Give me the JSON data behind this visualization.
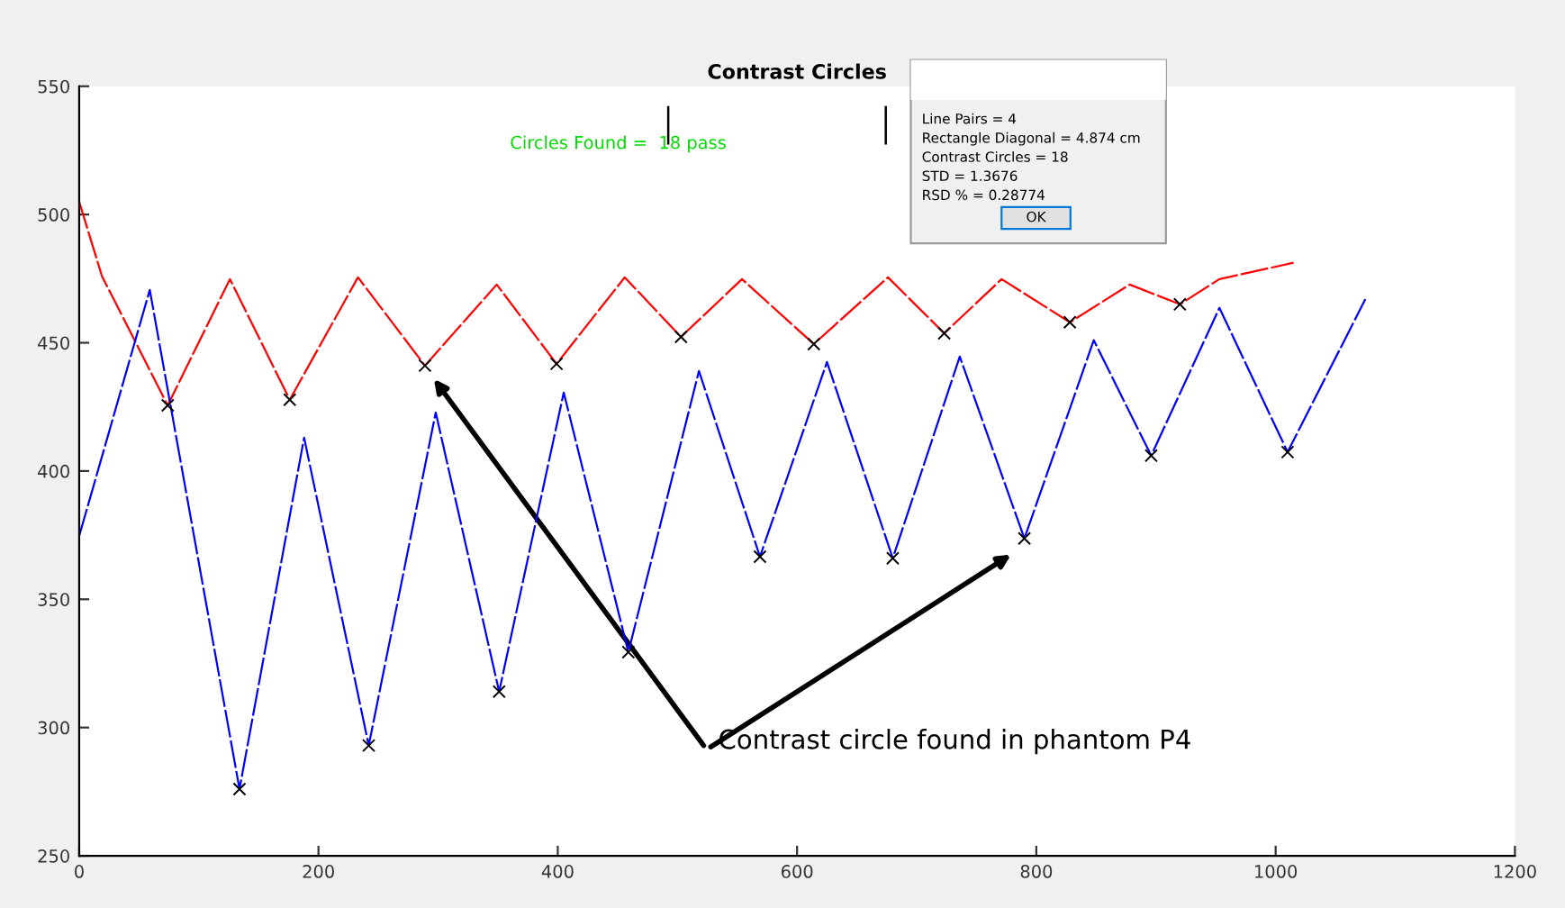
{
  "chart_data": {
    "type": "line",
    "title": "Contrast Circles",
    "xlim": [
      0,
      1200
    ],
    "xticks": [
      0,
      200,
      400,
      600,
      800,
      1000,
      1200
    ],
    "ylim": [
      250,
      550
    ],
    "yticks": [
      250,
      300,
      350,
      400,
      450,
      500,
      550
    ],
    "grid": false,
    "legend": false,
    "line_style": "dashed",
    "series": [
      {
        "color": "#ff0000",
        "x": [
          0,
          19,
          74,
          126,
          176,
          233,
          289,
          349,
          399,
          456,
          503,
          554,
          614,
          676,
          723,
          771,
          828,
          878,
          920,
          953,
          1015
        ],
        "values": [
          505,
          476,
          425.6,
          474.8,
          427.8,
          475.5,
          441.1,
          472.7,
          441.8,
          475.5,
          452.3,
          474.8,
          449.5,
          475.5,
          453.7,
          474.8,
          458,
          472.7,
          465,
          474.8,
          481.2
        ]
      },
      {
        "color": "#0000ff",
        "x": [
          0,
          59,
          134,
          188,
          242,
          298,
          351,
          405,
          459,
          518,
          569,
          625,
          680,
          736,
          790,
          848,
          896,
          953,
          1010,
          1075
        ],
        "values": [
          374.7,
          470.6,
          276,
          413,
          293,
          422.8,
          314,
          430.6,
          329.4,
          439,
          366.6,
          442.5,
          366,
          444.6,
          373.7,
          451,
          406,
          463.6,
          407.4,
          467
        ]
      },
      {
        "type": "scatter",
        "marker": "cross",
        "color": "#000000",
        "x": [
          74,
          176,
          289,
          399,
          503,
          614,
          723,
          828,
          920,
          134,
          242,
          351,
          459,
          569,
          680,
          790,
          896,
          1010
        ],
        "values": [
          425.6,
          427.8,
          441.1,
          441.8,
          452.3,
          449.5,
          453.7,
          458,
          465,
          276,
          293,
          314,
          329.4,
          366.6,
          366,
          373.7,
          406,
          407.4
        ]
      }
    ],
    "annotations": [
      "Circles Found =  18 pass",
      "Contrast circle found in phantom P4",
      "Line Pairs = 4",
      "Rectangle Diagonal = 4.874 cm",
      "Contrast Circles = 18",
      "STD = 1.3676",
      "RSD % = 0.28774",
      "OK"
    ]
  }
}
